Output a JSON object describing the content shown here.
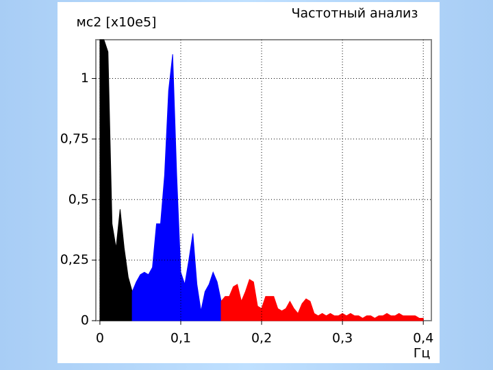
{
  "chart_data": {
    "type": "area",
    "title": "Частотный анализ",
    "y_label": "мс2 [x10e5]",
    "x_label": "Гц",
    "grid": true,
    "xlim": [
      -0.005,
      0.41
    ],
    "ylim": [
      0,
      1.16
    ],
    "xticks": [
      0,
      {
        "value": 0.1,
        "label": "0,1"
      },
      {
        "value": 0.2,
        "label": "0,2"
      },
      {
        "value": 0.3,
        "label": "0,3"
      },
      {
        "value": 0.4,
        "label": "0,4"
      }
    ],
    "yticks": [
      0,
      {
        "value": 0.25,
        "label": "0,25"
      },
      {
        "value": 0.5,
        "label": "0,5"
      },
      {
        "value": 0.75,
        "label": "0,75"
      },
      1
    ],
    "series": [
      {
        "color": "#000000",
        "x": [
          0,
          0.005,
          0.01,
          0.015,
          0.02,
          0.025,
          0.03,
          0.035,
          0.04
        ],
        "values": [
          1.16,
          1.16,
          1.11,
          0.4,
          0.3,
          0.46,
          0.3,
          0.18,
          0.12
        ]
      },
      {
        "color": "#0000ff",
        "x": [
          0.04,
          0.045,
          0.05,
          0.055,
          0.06,
          0.065,
          0.07,
          0.075,
          0.08,
          0.085,
          0.09,
          0.095,
          0.1,
          0.105,
          0.11,
          0.115,
          0.12,
          0.125,
          0.13,
          0.135,
          0.14,
          0.145,
          0.15
        ],
        "values": [
          0.12,
          0.16,
          0.19,
          0.2,
          0.19,
          0.22,
          0.4,
          0.4,
          0.6,
          0.95,
          1.1,
          0.6,
          0.2,
          0.15,
          0.25,
          0.36,
          0.15,
          0.04,
          0.12,
          0.15,
          0.2,
          0.16,
          0.08
        ]
      },
      {
        "color": "#ff0000",
        "x": [
          0.15,
          0.155,
          0.16,
          0.165,
          0.17,
          0.175,
          0.18,
          0.185,
          0.19,
          0.195,
          0.2,
          0.205,
          0.21,
          0.215,
          0.22,
          0.225,
          0.23,
          0.235,
          0.24,
          0.245,
          0.25,
          0.255,
          0.26,
          0.265,
          0.27,
          0.275,
          0.28,
          0.285,
          0.29,
          0.295,
          0.3,
          0.305,
          0.31,
          0.315,
          0.32,
          0.325,
          0.33,
          0.335,
          0.34,
          0.345,
          0.35,
          0.355,
          0.36,
          0.365,
          0.37,
          0.375,
          0.38,
          0.385,
          0.39,
          0.395,
          0.4
        ],
        "values": [
          0.08,
          0.1,
          0.1,
          0.14,
          0.15,
          0.08,
          0.12,
          0.17,
          0.16,
          0.06,
          0.05,
          0.1,
          0.1,
          0.1,
          0.05,
          0.04,
          0.05,
          0.08,
          0.05,
          0.03,
          0.07,
          0.09,
          0.08,
          0.03,
          0.02,
          0.03,
          0.02,
          0.03,
          0.02,
          0.02,
          0.03,
          0.02,
          0.03,
          0.02,
          0.02,
          0.01,
          0.02,
          0.02,
          0.01,
          0.02,
          0.02,
          0.03,
          0.02,
          0.02,
          0.03,
          0.02,
          0.02,
          0.02,
          0.02,
          0.01,
          0.01
        ]
      }
    ]
  }
}
